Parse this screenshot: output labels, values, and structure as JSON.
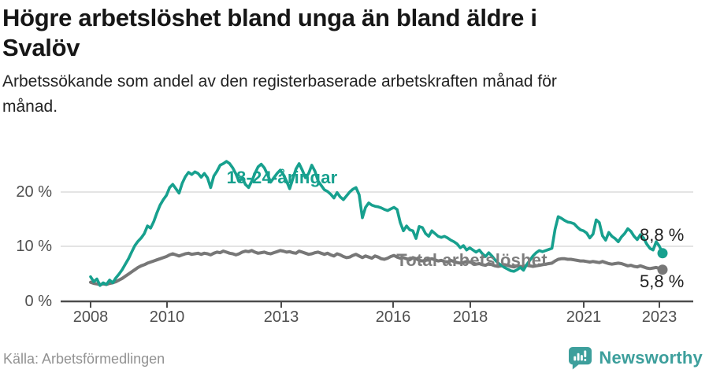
{
  "chart_data": {
    "type": "line",
    "title": "Högre arbetslöshet bland unga än bland äldre i\nSvalöv",
    "subtitle": "Arbetssökande som andel av den registerbaserade arbetskraften månad för\nmånad.",
    "x_unit": "month",
    "x_range": [
      "2008-01",
      "2023-02"
    ],
    "ylim": [
      0,
      27
    ],
    "grid": "horizontal",
    "legend_position": "inline-labels",
    "y_ticks": [
      {
        "label": "20 %",
        "value": 20
      },
      {
        "label": "10 %",
        "value": 10
      },
      {
        "label": "0 %",
        "value": 0
      }
    ],
    "x_ticks": [
      {
        "label": "2008",
        "year": 2008
      },
      {
        "label": "2010",
        "year": 2010
      },
      {
        "label": "2013",
        "year": 2013
      },
      {
        "label": "2016",
        "year": 2016
      },
      {
        "label": "2018",
        "year": 2018
      },
      {
        "label": "2021",
        "year": 2021
      },
      {
        "label": "2023",
        "year": 2023
      }
    ],
    "series": [
      {
        "name": "18-24-åringar",
        "color": "#17a08e",
        "end_label": "8,8 %",
        "end_value": 8.8,
        "values": [
          4.5,
          3.6,
          4.1,
          2.9,
          3.4,
          3.1,
          3.9,
          3.4,
          4.3,
          5.0,
          5.8,
          6.8,
          7.8,
          9.0,
          10.2,
          11.0,
          11.6,
          12.4,
          13.8,
          13.4,
          14.6,
          16.2,
          17.6,
          18.6,
          19.4,
          20.8,
          21.4,
          20.6,
          19.8,
          21.6,
          22.8,
          23.6,
          23.2,
          23.7,
          23.4,
          22.7,
          23.4,
          22.6,
          20.8,
          22.9,
          23.8,
          24.9,
          25.2,
          25.6,
          25.2,
          24.4,
          23.3,
          21.9,
          22.6,
          21.4,
          20.8,
          22.0,
          23.4,
          24.6,
          25.1,
          24.4,
          23.2,
          21.8,
          22.6,
          23.4,
          24.0,
          23.2,
          22.0,
          20.6,
          22.4,
          24.2,
          25.2,
          24.0,
          22.6,
          23.4,
          24.9,
          23.8,
          22.0,
          21.2,
          20.4,
          20.1,
          19.6,
          18.9,
          19.9,
          19.1,
          18.6,
          19.3,
          20.0,
          20.5,
          20.8,
          19.5,
          15.3,
          17.2,
          18.0,
          17.6,
          17.4,
          17.3,
          17.1,
          16.8,
          16.6,
          16.9,
          17.2,
          16.8,
          14.4,
          12.9,
          13.8,
          13.1,
          12.9,
          11.5,
          13.7,
          13.5,
          12.4,
          11.9,
          12.9,
          12.4,
          11.9,
          11.7,
          11.9,
          11.6,
          11.2,
          10.9,
          10.5,
          9.8,
          10.2,
          9.4,
          9.8,
          9.4,
          9.0,
          9.4,
          8.7,
          8.2,
          8.9,
          8.3,
          7.6,
          7.0,
          6.6,
          6.2,
          5.9,
          5.6,
          5.5,
          5.8,
          6.2,
          5.7,
          6.7,
          7.5,
          8.3,
          8.9,
          9.3,
          9.1,
          9.3,
          9.5,
          9.7,
          13.2,
          15.5,
          15.2,
          14.8,
          14.5,
          14.4,
          14.2,
          13.6,
          13.1,
          12.9,
          12.5,
          11.6,
          12.3,
          14.9,
          14.4,
          12.0,
          11.2,
          12.6,
          11.9,
          11.5,
          10.9,
          11.8,
          12.4,
          13.3,
          12.8,
          11.9,
          11.3,
          12.2,
          11.6,
          10.5,
          9.7,
          9.4,
          10.9,
          10.1,
          8.8
        ]
      },
      {
        "name": "Total arbetslöshet",
        "color": "#777777",
        "end_label": "5,8 %",
        "end_value": 5.8,
        "values": [
          3.5,
          3.3,
          3.2,
          3.1,
          3.2,
          3.1,
          3.3,
          3.4,
          3.6,
          3.9,
          4.2,
          4.6,
          5.0,
          5.4,
          5.8,
          6.2,
          6.5,
          6.7,
          7.0,
          7.2,
          7.4,
          7.6,
          7.8,
          8.0,
          8.2,
          8.5,
          8.7,
          8.5,
          8.3,
          8.5,
          8.7,
          8.8,
          8.6,
          8.7,
          8.8,
          8.6,
          8.8,
          8.7,
          8.5,
          8.8,
          9.0,
          8.9,
          9.2,
          9.0,
          8.8,
          8.7,
          8.5,
          8.7,
          9.0,
          9.2,
          9.1,
          9.3,
          9.0,
          8.8,
          8.9,
          9.0,
          8.8,
          8.7,
          8.9,
          9.1,
          9.3,
          9.2,
          9.0,
          9.1,
          8.9,
          8.8,
          9.2,
          9.0,
          8.8,
          8.6,
          8.7,
          8.9,
          9.0,
          8.8,
          8.6,
          8.8,
          8.5,
          8.3,
          8.7,
          8.5,
          8.2,
          8.0,
          8.1,
          8.4,
          8.6,
          8.3,
          8.0,
          8.3,
          8.1,
          7.9,
          8.3,
          8.1,
          7.8,
          7.7,
          7.9,
          8.2,
          8.4,
          8.1,
          7.9,
          8.0,
          7.8,
          7.6,
          8.0,
          7.8,
          7.5,
          7.4,
          7.5,
          7.7,
          7.8,
          7.6,
          7.4,
          7.5,
          7.3,
          7.2,
          7.5,
          7.3,
          7.1,
          7.0,
          7.1,
          7.3,
          7.2,
          7.0,
          6.8,
          6.9,
          6.7,
          6.6,
          6.9,
          6.7,
          6.5,
          6.4,
          6.5,
          6.7,
          6.6,
          6.4,
          6.3,
          6.5,
          6.4,
          6.3,
          6.6,
          6.5,
          6.4,
          6.5,
          6.6,
          6.7,
          6.8,
          6.9,
          7.0,
          7.4,
          7.7,
          7.8,
          7.8,
          7.7,
          7.7,
          7.6,
          7.5,
          7.4,
          7.4,
          7.3,
          7.2,
          7.3,
          7.2,
          7.1,
          7.3,
          7.1,
          6.9,
          6.8,
          6.9,
          7.0,
          6.9,
          6.7,
          6.5,
          6.6,
          6.4,
          6.3,
          6.5,
          6.3,
          6.1,
          6.0,
          6.1,
          6.2,
          6.0,
          5.8
        ]
      }
    ]
  },
  "footer": {
    "source": "Källa: Arbetsförmedlingen",
    "brand": "Newsworthy"
  }
}
